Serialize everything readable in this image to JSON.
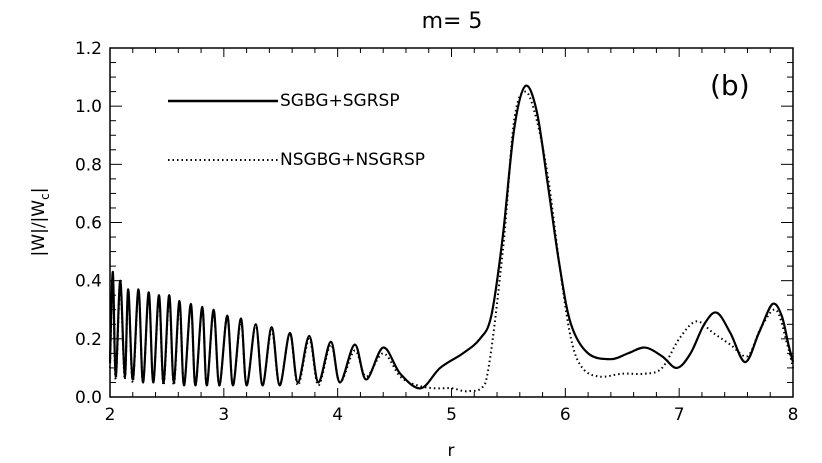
{
  "chart_data": {
    "type": "line",
    "title": "m= 5",
    "xlabel": "r",
    "ylabel": "|W|/|W",
    "ylabel_sub": "c",
    "ylabel_end": "|",
    "panel_label": "(b)",
    "xlim": [
      2,
      8
    ],
    "ylim": [
      0,
      1.2
    ],
    "x_ticks": [
      2,
      3,
      4,
      5,
      6,
      7,
      8
    ],
    "x_tick_labels": [
      "2",
      "3",
      "4",
      "5",
      "6",
      "7",
      "8"
    ],
    "y_ticks": [
      0,
      0.2,
      0.4,
      0.6,
      0.8,
      1.0,
      1.2
    ],
    "y_tick_labels": [
      "0.0",
      "0.2",
      "0.4",
      "0.6",
      "0.8",
      "1.0",
      "1.2"
    ],
    "grid": false,
    "legend_position": "top-left",
    "series": [
      {
        "name": "SGBG+SGRSP",
        "style": "solid",
        "color": "#000000",
        "x": [
          2.0,
          2.025,
          2.05,
          2.09,
          2.13,
          2.16,
          2.2,
          2.25,
          2.29,
          2.34,
          2.38,
          2.43,
          2.47,
          2.52,
          2.56,
          2.61,
          2.65,
          2.71,
          2.75,
          2.81,
          2.85,
          2.91,
          2.96,
          3.03,
          3.08,
          3.15,
          3.2,
          3.28,
          3.34,
          3.42,
          3.49,
          3.58,
          3.65,
          3.75,
          3.83,
          3.94,
          4.02,
          4.15,
          4.25,
          4.4,
          4.55,
          4.73,
          4.9,
          5.1,
          5.25,
          5.35,
          5.45,
          5.55,
          5.65,
          5.75,
          5.85,
          5.95,
          6.05,
          6.2,
          6.4,
          6.55,
          6.7,
          6.85,
          6.98,
          7.1,
          7.22,
          7.33,
          7.45,
          7.58,
          7.7,
          7.82,
          7.9,
          7.96,
          8.0
        ],
        "y": [
          0.12,
          0.43,
          0.07,
          0.4,
          0.07,
          0.37,
          0.06,
          0.37,
          0.05,
          0.36,
          0.05,
          0.35,
          0.05,
          0.35,
          0.05,
          0.33,
          0.04,
          0.32,
          0.04,
          0.31,
          0.04,
          0.3,
          0.04,
          0.28,
          0.04,
          0.27,
          0.04,
          0.25,
          0.04,
          0.24,
          0.04,
          0.22,
          0.05,
          0.21,
          0.05,
          0.19,
          0.05,
          0.18,
          0.06,
          0.17,
          0.08,
          0.03,
          0.1,
          0.15,
          0.2,
          0.28,
          0.55,
          0.92,
          1.07,
          0.98,
          0.72,
          0.45,
          0.25,
          0.15,
          0.13,
          0.15,
          0.17,
          0.14,
          0.1,
          0.15,
          0.25,
          0.29,
          0.22,
          0.12,
          0.22,
          0.32,
          0.28,
          0.18,
          0.12
        ]
      },
      {
        "name": "NSGBG+NSGRSP",
        "style": "dotted",
        "color": "#000000",
        "x": [
          2.0,
          2.025,
          2.05,
          2.09,
          2.13,
          2.16,
          2.2,
          2.25,
          2.29,
          2.34,
          2.38,
          2.43,
          2.47,
          2.52,
          2.56,
          2.61,
          2.65,
          2.71,
          2.75,
          2.81,
          2.85,
          2.91,
          2.96,
          3.03,
          3.08,
          3.15,
          3.2,
          3.28,
          3.34,
          3.42,
          3.49,
          3.58,
          3.65,
          3.75,
          3.83,
          3.94,
          4.02,
          4.15,
          4.25,
          4.4,
          4.55,
          4.7,
          4.85,
          5.0,
          5.15,
          5.3,
          5.45,
          5.55,
          5.65,
          5.75,
          5.85,
          5.95,
          6.05,
          6.15,
          6.3,
          6.5,
          6.7,
          6.85,
          7.0,
          7.15,
          7.3,
          7.45,
          7.6,
          7.72,
          7.85,
          7.95,
          8.0
        ],
        "y": [
          0.1,
          0.4,
          0.06,
          0.38,
          0.06,
          0.36,
          0.05,
          0.36,
          0.05,
          0.35,
          0.05,
          0.34,
          0.04,
          0.34,
          0.04,
          0.32,
          0.04,
          0.31,
          0.04,
          0.3,
          0.04,
          0.29,
          0.04,
          0.28,
          0.04,
          0.26,
          0.04,
          0.25,
          0.04,
          0.23,
          0.04,
          0.22,
          0.04,
          0.2,
          0.04,
          0.18,
          0.05,
          0.16,
          0.07,
          0.15,
          0.07,
          0.04,
          0.03,
          0.03,
          0.02,
          0.05,
          0.5,
          0.95,
          1.05,
          0.95,
          0.75,
          0.45,
          0.2,
          0.1,
          0.07,
          0.08,
          0.08,
          0.1,
          0.2,
          0.26,
          0.22,
          0.18,
          0.14,
          0.24,
          0.3,
          0.18,
          0.1
        ]
      }
    ]
  }
}
